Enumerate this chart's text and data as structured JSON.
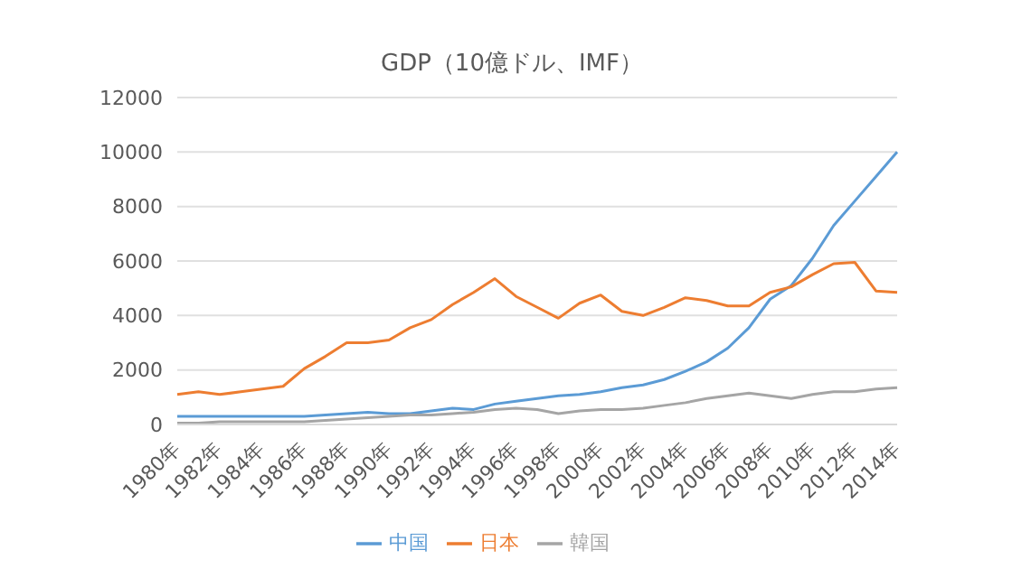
{
  "chart_data": {
    "type": "line",
    "title": "GDP（10億ドル、IMF）",
    "categories": [
      "1980年",
      null,
      "1982年",
      null,
      "1984年",
      null,
      "1986年",
      null,
      "1988年",
      null,
      "1990年",
      null,
      "1992年",
      null,
      "1994年",
      null,
      "1996年",
      null,
      "1998年",
      null,
      "2000年",
      null,
      "2002年",
      null,
      "2004年",
      null,
      "2006年",
      null,
      "2008年",
      null,
      "2010年",
      null,
      "2012年",
      null,
      "2014年"
    ],
    "series": [
      {
        "name": "中国",
        "color": "#5b9bd5",
        "values": [
          300,
          300,
          300,
          300,
          300,
          300,
          300,
          350,
          400,
          450,
          400,
          400,
          500,
          600,
          550,
          750,
          850,
          950,
          1050,
          1100,
          1200,
          1350,
          1450,
          1650,
          1950,
          2300,
          2800,
          3550,
          4600,
          5100,
          6100,
          7300,
          8200,
          9100,
          10000
        ]
      },
      {
        "name": "日本",
        "color": "#ed7d31",
        "values": [
          1100,
          1200,
          1100,
          1200,
          1300,
          1400,
          2050,
          2500,
          3000,
          3000,
          3100,
          3550,
          3850,
          4400,
          4850,
          5350,
          4700,
          4300,
          3900,
          4450,
          4750,
          4150,
          4000,
          4300,
          4650,
          4550,
          4350,
          4350,
          4850,
          5050,
          5500,
          5900,
          5950,
          4900,
          4850
        ]
      },
      {
        "name": "韓国",
        "color": "#a5a5a5",
        "values": [
          50,
          50,
          100,
          100,
          100,
          100,
          100,
          150,
          200,
          250,
          300,
          350,
          350,
          400,
          450,
          550,
          600,
          550,
          400,
          500,
          550,
          550,
          600,
          700,
          800,
          950,
          1050,
          1150,
          1050,
          950,
          1100,
          1200,
          1200,
          1300,
          1350
        ]
      }
    ],
    "ylim": [
      0,
      12000
    ],
    "yticks": [
      0,
      2000,
      4000,
      6000,
      8000,
      10000,
      12000
    ],
    "grid": "y",
    "legend": "bottom",
    "marker": "none",
    "line_style": "solid"
  }
}
